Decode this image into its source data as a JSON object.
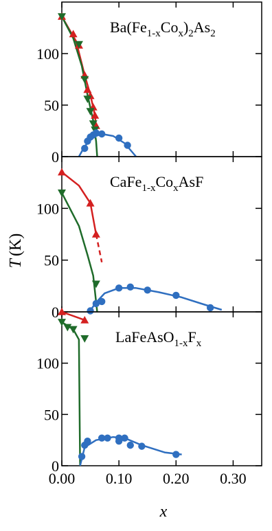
{
  "colors": {
    "red": "#d42020",
    "green": "#1f6b2a",
    "blue": "#2f6fc0",
    "axis": "#000000"
  },
  "ylabel": "T (K)",
  "ylabel_italic": "T",
  "ylabel_unit": "(K)",
  "xlabel": "x",
  "chart_data": [
    {
      "type": "scatter",
      "title_parts": {
        "base": "Ba(Fe",
        "sub1": "1-x",
        "mid": "Co",
        "sub2": "x",
        "mid2": ")",
        "sub3": "2",
        "tail": "As",
        "sub4": "2"
      },
      "title": "Ba(Fe1-xCox)2As2",
      "xlim": [
        0.0,
        0.35
      ],
      "ylim": [
        0,
        150
      ],
      "yticks": [
        0,
        50,
        100
      ],
      "series": [
        {
          "marker": "triangle-up",
          "color_key": "red",
          "points": [
            [
              0.0,
              136
            ],
            [
              0.02,
              119
            ],
            [
              0.03,
              108
            ],
            [
              0.04,
              79
            ],
            [
              0.045,
              65
            ],
            [
              0.05,
              59
            ],
            [
              0.055,
              48
            ],
            [
              0.058,
              40
            ],
            [
              0.06,
              30
            ]
          ],
          "line": [
            [
              0.0,
              136
            ],
            [
              0.025,
              112
            ],
            [
              0.04,
              79
            ],
            [
              0.05,
              60
            ],
            [
              0.058,
              40
            ],
            [
              0.06,
              30
            ]
          ],
          "dashed": false
        },
        {
          "marker": "triangle-down",
          "color_key": "green",
          "points": [
            [
              0.0,
              136
            ],
            [
              0.03,
              109
            ],
            [
              0.04,
              75
            ],
            [
              0.045,
              56
            ],
            [
              0.05,
              44
            ],
            [
              0.055,
              32
            ],
            [
              0.058,
              26
            ]
          ],
          "line": [
            [
              0.0,
              136
            ],
            [
              0.02,
              115
            ],
            [
              0.035,
              88
            ],
            [
              0.045,
              60
            ],
            [
              0.055,
              35
            ],
            [
              0.06,
              15
            ],
            [
              0.062,
              0
            ]
          ],
          "dashed": false
        },
        {
          "marker": "circle",
          "color_key": "blue",
          "points": [
            [
              0.04,
              8
            ],
            [
              0.045,
              15
            ],
            [
              0.05,
              19
            ],
            [
              0.055,
              21
            ],
            [
              0.06,
              23
            ],
            [
              0.07,
              22
            ],
            [
              0.1,
              18
            ],
            [
              0.115,
              11
            ]
          ],
          "line": [
            [
              0.03,
              0
            ],
            [
              0.04,
              10
            ],
            [
              0.055,
              19
            ],
            [
              0.07,
              22
            ],
            [
              0.09,
              20
            ],
            [
              0.11,
              13
            ],
            [
              0.13,
              0
            ]
          ],
          "dashed": false
        }
      ]
    },
    {
      "type": "scatter",
      "title_parts": {
        "base": "CaFe",
        "sub1": "1-x",
        "mid": "Co",
        "sub2": "x",
        "tail": "AsF"
      },
      "title": "CaFe1-xCoxAsF",
      "xlim": [
        0.0,
        0.35
      ],
      "ylim": [
        0,
        150
      ],
      "yticks": [
        0,
        50,
        100
      ],
      "series": [
        {
          "marker": "triangle-up",
          "color_key": "red",
          "points": [
            [
              0.0,
              135
            ],
            [
              0.05,
              105
            ],
            [
              0.06,
              75
            ]
          ],
          "line": [
            [
              0.0,
              135
            ],
            [
              0.03,
              122
            ],
            [
              0.05,
              105
            ],
            [
              0.06,
              75
            ]
          ],
          "dashed": false
        },
        {
          "marker": "none",
          "color_key": "red",
          "points": [],
          "line": [
            [
              0.06,
              75
            ],
            [
              0.07,
              48
            ]
          ],
          "dashed": true
        },
        {
          "marker": "triangle-down",
          "color_key": "green",
          "points": [
            [
              0.0,
              115
            ],
            [
              0.06,
              27
            ]
          ],
          "line": [
            [
              0.0,
              115
            ],
            [
              0.03,
              83
            ],
            [
              0.045,
              55
            ],
            [
              0.055,
              35
            ],
            [
              0.062,
              0
            ]
          ],
          "dashed": false
        },
        {
          "marker": "circle",
          "color_key": "blue",
          "points": [
            [
              0.05,
              1
            ],
            [
              0.06,
              8
            ],
            [
              0.07,
              10
            ],
            [
              0.1,
              23
            ],
            [
              0.12,
              24
            ],
            [
              0.15,
              21
            ],
            [
              0.2,
              16
            ],
            [
              0.26,
              4
            ]
          ],
          "line": [
            [
              0.048,
              0
            ],
            [
              0.06,
              9
            ],
            [
              0.075,
              18
            ],
            [
              0.1,
              23
            ],
            [
              0.13,
              23
            ],
            [
              0.17,
              19
            ],
            [
              0.21,
              14
            ],
            [
              0.25,
              7
            ],
            [
              0.28,
              2
            ]
          ],
          "dashed": false
        }
      ]
    },
    {
      "type": "scatter",
      "title_parts": {
        "base": "LaFeAsO",
        "sub1": "1-x",
        "mid": "F",
        "sub2": "x"
      },
      "title": "LaFeAsO1-xFx",
      "xlim": [
        0.0,
        0.35
      ],
      "ylim": [
        0,
        150
      ],
      "yticks": [
        0,
        50,
        100
      ],
      "xticks": [
        0.0,
        0.1,
        0.2,
        0.3
      ],
      "xtick_labels": [
        "0.00",
        "0.10",
        "0.20",
        "0.30"
      ],
      "series": [
        {
          "marker": "triangle-up",
          "color_key": "red",
          "points": [
            [
              0.0,
              150
            ],
            [
              0.04,
              142
            ]
          ],
          "line": [
            [
              0.0,
              150
            ],
            [
              0.04,
              142
            ]
          ],
          "dashed": false
        },
        {
          "marker": "triangle-down",
          "color_key": "green",
          "points": [
            [
              0.0,
              140
            ],
            [
              0.01,
              135
            ],
            [
              0.02,
              133
            ],
            [
              0.04,
              124
            ]
          ],
          "line": [
            [
              0.0,
              140
            ],
            [
              0.02,
              133
            ],
            [
              0.03,
              123
            ],
            [
              0.032,
              0
            ]
          ],
          "dashed": false
        },
        {
          "marker": "circle",
          "color_key": "blue",
          "points": [
            [
              0.035,
              9
            ],
            [
              0.04,
              20
            ],
            [
              0.045,
              24
            ],
            [
              0.07,
              27
            ],
            [
              0.08,
              27
            ],
            [
              0.1,
              27
            ],
            [
              0.1,
              24
            ],
            [
              0.11,
              27
            ],
            [
              0.12,
              20
            ],
            [
              0.14,
              19
            ],
            [
              0.2,
              11
            ]
          ],
          "line": [
            [
              0.032,
              0
            ],
            [
              0.04,
              18
            ],
            [
              0.06,
              25
            ],
            [
              0.09,
              28
            ],
            [
              0.11,
              27
            ],
            [
              0.14,
              20
            ],
            [
              0.18,
              13
            ],
            [
              0.21,
              11
            ]
          ],
          "dashed": false
        }
      ]
    }
  ]
}
